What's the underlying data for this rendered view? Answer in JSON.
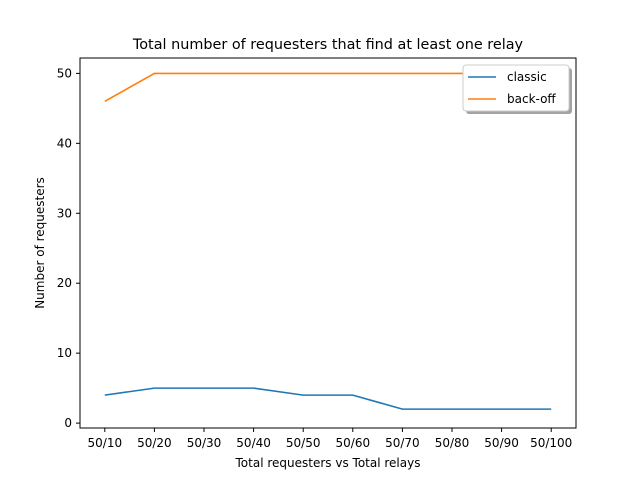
{
  "chart_data": {
    "type": "line",
    "title": "Total number of requesters that find at least one relay",
    "xlabel": "Total requesters vs Total relays",
    "ylabel": "Number of requesters",
    "categories": [
      "50/10",
      "50/20",
      "50/30",
      "50/40",
      "50/50",
      "50/60",
      "50/70",
      "50/80",
      "50/90",
      "50/100"
    ],
    "yticks": [
      0,
      10,
      20,
      30,
      40,
      50
    ],
    "ylim": [
      -0.7,
      52.2
    ],
    "grid": false,
    "legend_position": "top-right",
    "series": [
      {
        "name": "classic",
        "color": "#1f77b4",
        "values": [
          4,
          5,
          5,
          5,
          4,
          4,
          2,
          2,
          2,
          2
        ]
      },
      {
        "name": "back-off",
        "color": "#ff7f0e",
        "values": [
          46,
          50,
          50,
          50,
          50,
          50,
          50,
          50,
          50,
          50
        ]
      }
    ]
  }
}
